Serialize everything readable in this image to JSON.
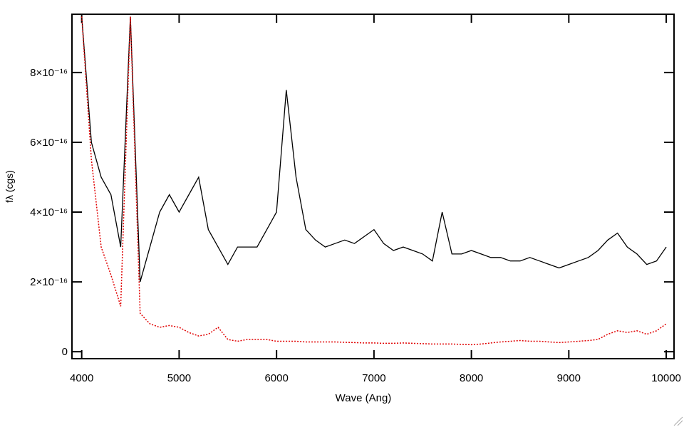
{
  "chart_data": {
    "type": "line",
    "xlabel": "Wave (Ang)",
    "ylabel": "fλ (cgs)",
    "xlim": [
      3900,
      10080
    ],
    "ylim": [
      -2e-17,
      9.67e-16
    ],
    "xticks": [
      4000,
      5000,
      6000,
      7000,
      8000,
      9000,
      10000
    ],
    "yticks": [
      0,
      {
        "value": 2e-16,
        "label": "2×10⁻¹⁶"
      },
      {
        "value": 4e-16,
        "label": "4×10⁻¹⁶"
      },
      {
        "value": 6e-16,
        "label": "6×10⁻¹⁶"
      },
      {
        "value": 8e-16,
        "label": "8×10⁻¹⁶"
      }
    ],
    "x": [
      4000,
      4100,
      4200,
      4300,
      4400,
      4500,
      4600,
      4700,
      4800,
      4900,
      5000,
      5100,
      5200,
      5300,
      5400,
      5500,
      5600,
      5700,
      5800,
      5900,
      6000,
      6100,
      6200,
      6300,
      6400,
      6500,
      6600,
      6700,
      6800,
      6900,
      7000,
      7100,
      7200,
      7300,
      7400,
      7500,
      7600,
      7700,
      7800,
      7900,
      8000,
      8100,
      8200,
      8300,
      8400,
      8500,
      8600,
      8700,
      8800,
      8900,
      9000,
      9100,
      9200,
      9300,
      9400,
      9500,
      9600,
      9700,
      9800,
      9900,
      10000
    ],
    "series": [
      {
        "color": "#000000",
        "style": "solid",
        "values": [
          9.6e-16,
          6e-16,
          5e-16,
          4.5e-16,
          3e-16,
          9.6e-16,
          2e-16,
          3e-16,
          4e-16,
          4.5e-16,
          4e-16,
          4.5e-16,
          5e-16,
          3.5e-16,
          3e-16,
          2.5e-16,
          3e-16,
          3e-16,
          3e-16,
          3.5e-16,
          4e-16,
          7.5e-16,
          5e-16,
          3.5e-16,
          3.2e-16,
          3e-16,
          3.1e-16,
          3.2e-16,
          3.1e-16,
          3.3e-16,
          3.5e-16,
          3.1e-16,
          2.9e-16,
          3e-16,
          2.9e-16,
          2.8e-16,
          2.6e-16,
          4e-16,
          2.8e-16,
          2.8e-16,
          2.9e-16,
          2.8e-16,
          2.7e-16,
          2.7e-16,
          2.6e-16,
          2.6e-16,
          2.7e-16,
          2.6e-16,
          2.5e-16,
          2.4e-16,
          2.5e-16,
          2.6e-16,
          2.7e-16,
          2.9e-16,
          3.2e-16,
          3.4e-16,
          3e-16,
          2.8e-16,
          2.5e-16,
          2.6e-16,
          3e-16
        ]
      },
      {
        "color": "#e00000",
        "style": "dotted",
        "values": [
          9.6e-16,
          5.5e-16,
          3e-16,
          2.2e-16,
          1.3e-16,
          9.6e-16,
          1.1e-16,
          8e-17,
          7e-17,
          7.5e-17,
          7e-17,
          5.5e-17,
          4.5e-17,
          5e-17,
          7e-17,
          3.5e-17,
          3e-17,
          3.5e-17,
          3.5e-17,
          3.5e-17,
          3e-17,
          3e-17,
          3e-17,
          2.8e-17,
          2.8e-17,
          2.8e-17,
          2.8e-17,
          2.7e-17,
          2.6e-17,
          2.5e-17,
          2.5e-17,
          2.4e-17,
          2.4e-17,
          2.5e-17,
          2.4e-17,
          2.3e-17,
          2.2e-17,
          2.2e-17,
          2.2e-17,
          2.1e-17,
          2e-17,
          2.2e-17,
          2.5e-17,
          2.8e-17,
          3e-17,
          3.2e-17,
          3e-17,
          3e-17,
          2.8e-17,
          2.6e-17,
          2.8e-17,
          3e-17,
          3.2e-17,
          3.5e-17,
          5e-17,
          6e-17,
          5.5e-17,
          6e-17,
          5e-17,
          6e-17,
          8e-17
        ]
      }
    ]
  }
}
